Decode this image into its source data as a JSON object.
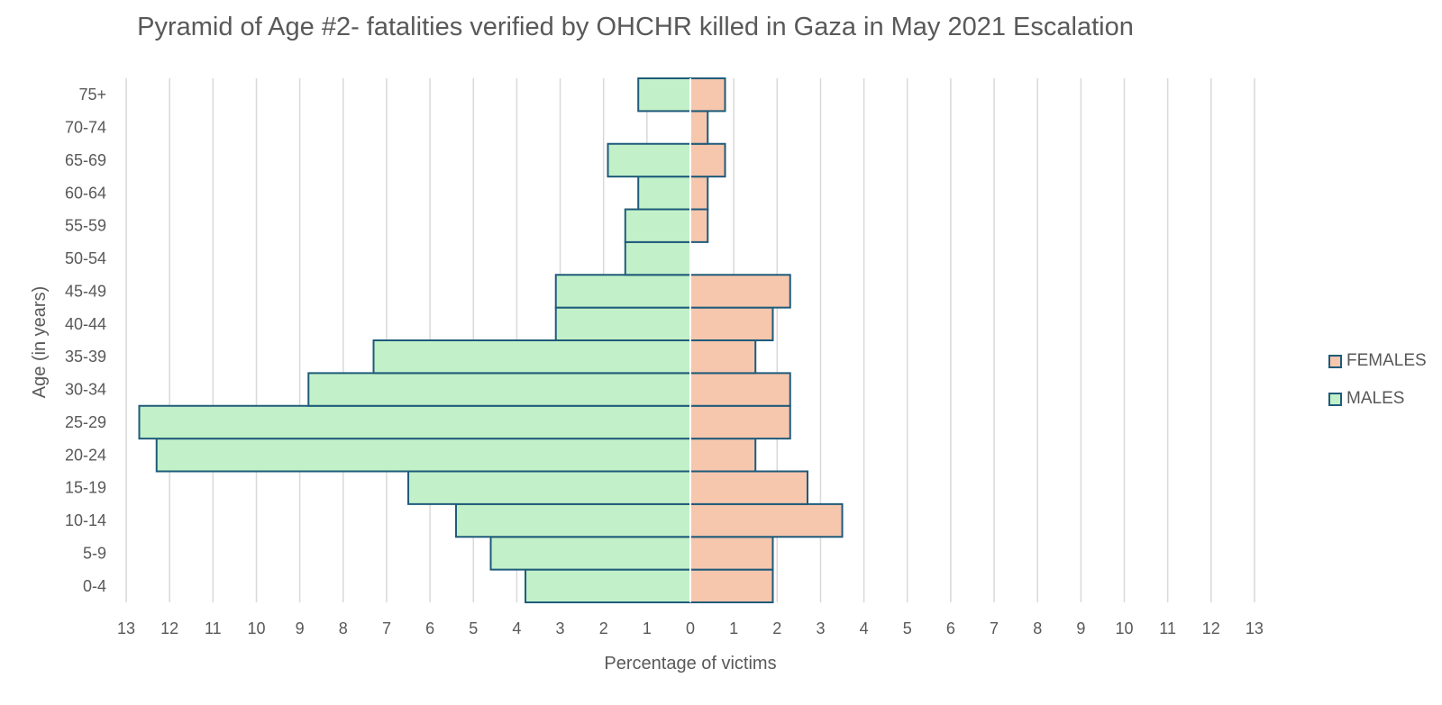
{
  "chart_data": {
    "type": "bar",
    "orientation": "horizontal-pyramid",
    "title": "Pyramid of Age #2- fatalities verified by OHCHR killed in Gaza in May 2021 Escalation",
    "xlabel": "Percentage of victims",
    "ylabel": "Age (in years)",
    "categories": [
      "0-4",
      "5-9",
      "10-14",
      "15-19",
      "20-24",
      "25-29",
      "30-34",
      "35-39",
      "40-44",
      "45-49",
      "50-54",
      "55-59",
      "60-64",
      "65-69",
      "70-74",
      "75+"
    ],
    "x_tick_labels": [
      "13",
      "12",
      "11",
      "10",
      "9",
      "8",
      "7",
      "6",
      "5",
      "4",
      "3",
      "2",
      "1",
      "0",
      "1",
      "2",
      "3",
      "4",
      "5",
      "6",
      "7",
      "8",
      "9",
      "10",
      "11",
      "12",
      "13"
    ],
    "xlim": [
      -13,
      13
    ],
    "grid": "vertical",
    "legend_position": "right",
    "series": [
      {
        "name": "MALES",
        "color": "#c2f0c8",
        "values": [
          3.8,
          4.6,
          5.4,
          6.5,
          12.3,
          12.7,
          8.8,
          7.3,
          3.1,
          3.1,
          1.5,
          1.5,
          1.2,
          1.9,
          0,
          1.2
        ]
      },
      {
        "name": "FEMALES",
        "color": "#f6c6ad",
        "values": [
          1.9,
          1.9,
          3.5,
          2.7,
          1.5,
          2.3,
          2.3,
          1.5,
          1.9,
          2.3,
          0,
          0.4,
          0.4,
          0.8,
          0.4,
          0.8
        ]
      }
    ],
    "bar_border_color": "#1f5b7a",
    "grid_color": "#d9d9d9"
  }
}
